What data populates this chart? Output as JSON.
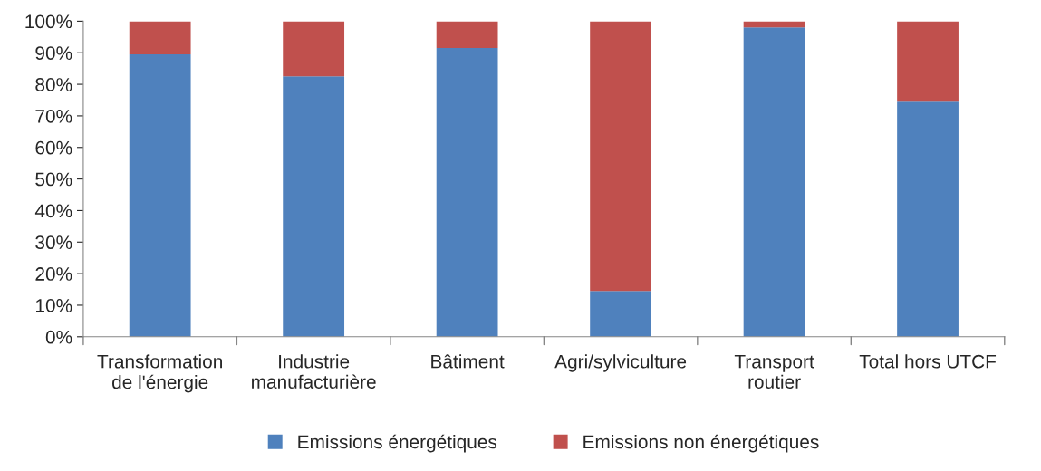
{
  "chart_data": {
    "type": "bar",
    "stacked": true,
    "categories": [
      "Transformation\nde l'énergie",
      "Industrie\nmanufacturière",
      "Bâtiment",
      "Agri/sylviculture",
      "Transport\nroutier",
      "Total hors UTCF"
    ],
    "series": [
      {
        "name": "Emissions énergétiques",
        "color": "#4f81bd",
        "values": [
          89.5,
          82.5,
          91.5,
          14.5,
          98,
          74.5
        ]
      },
      {
        "name": "Emissions non énergétiques",
        "color": "#c0504d",
        "values": [
          10.5,
          17.5,
          8.5,
          85.5,
          2,
          25.5
        ]
      }
    ],
    "ylim": [
      0,
      100
    ],
    "yticks": [
      {
        "value": 0,
        "label": "0%"
      },
      {
        "value": 10,
        "label": "10%"
      },
      {
        "value": 20,
        "label": "20%"
      },
      {
        "value": 30,
        "label": "30%"
      },
      {
        "value": 40,
        "label": "40%"
      },
      {
        "value": 50,
        "label": "50%"
      },
      {
        "value": 60,
        "label": "60%"
      },
      {
        "value": 70,
        "label": "70%"
      },
      {
        "value": 80,
        "label": "80%"
      },
      {
        "value": 90,
        "label": "90%"
      },
      {
        "value": 100,
        "label": "100%"
      }
    ],
    "grid": false,
    "legend": "bottom"
  }
}
